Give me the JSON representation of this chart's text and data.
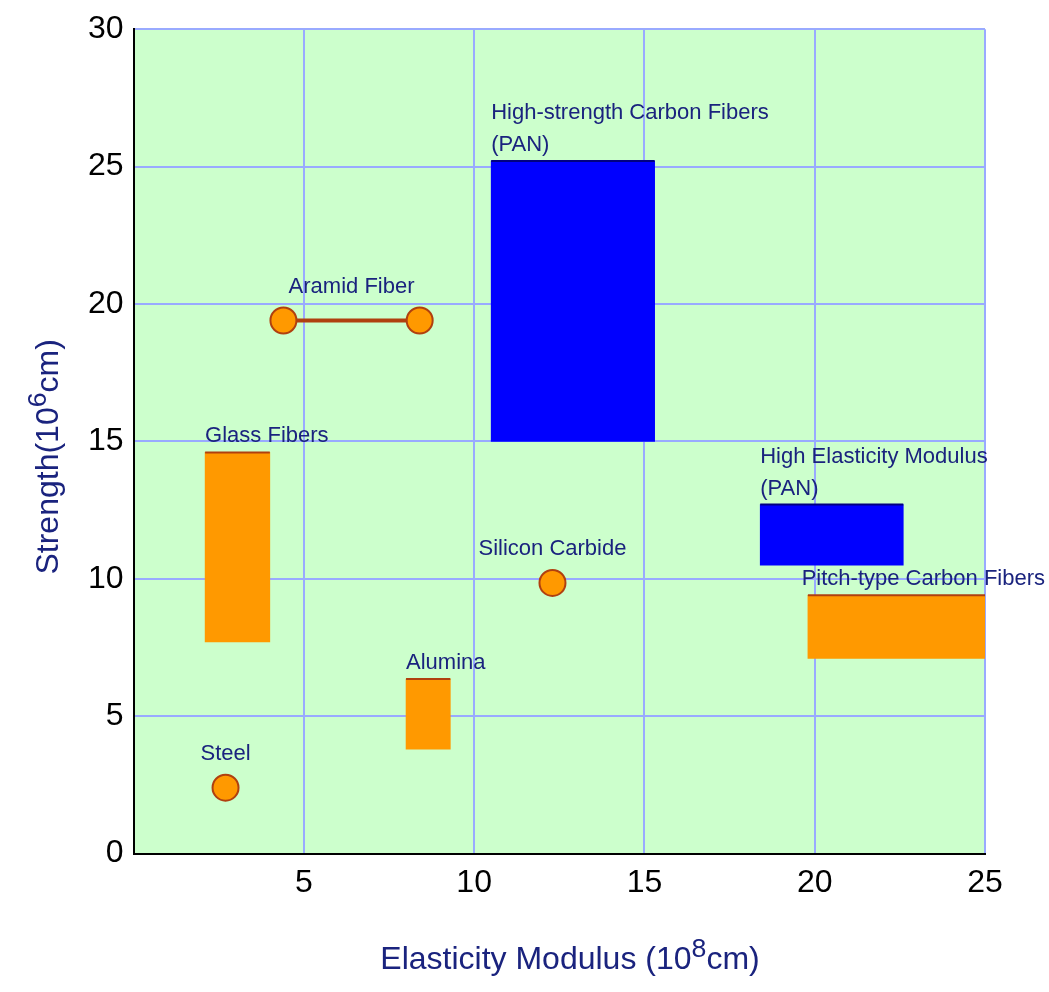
{
  "chart_data": {
    "type": "scatter",
    "xlabel": "Elasticity Modulus (10$^{8}$cm)",
    "ylabel": "Strength(10$^{6}$cm)",
    "xlim": [
      0,
      25
    ],
    "xticks": [
      5,
      10,
      15,
      20,
      25
    ],
    "ylim": [
      0,
      30
    ],
    "yticks": [
      0,
      5,
      10,
      15,
      20,
      25,
      30
    ],
    "grid": true,
    "marker": "circle",
    "series": [
      {
        "name": "High-strength Carbon Fibers (PAN)",
        "type": "bar",
        "color": "#0000ff",
        "x": [
          12.9
        ],
        "base": [
          15.0
        ],
        "values": [
          10.2
        ],
        "xerrors": [
          [
            10.5,
            15.3
          ]
        ]
      },
      {
        "name": "Aramid Fiber",
        "type": "line",
        "color": "#ff9900",
        "line_style": "solid",
        "x": [
          4.4,
          8.4
        ],
        "values": [
          19.4,
          19.4
        ]
      },
      {
        "name": "High Elasticity Modulus (PAN)",
        "type": "bar",
        "color": "#0000ff",
        "x": [
          20.5
        ],
        "base": [
          10.5
        ],
        "values": [
          2.2
        ],
        "xerrors": [
          [
            18.4,
            22.6
          ]
        ]
      },
      {
        "name": "Silicon Carbide",
        "color": "#ff9900",
        "x": [
          12.3
        ],
        "values": [
          9.85
        ]
      },
      {
        "name": "Glass Fibers",
        "type": "bar",
        "color": "#ff9900",
        "x": [
          3.05
        ],
        "base": [
          7.7
        ],
        "values": [
          6.9
        ],
        "xerrors": [
          [
            2.1,
            4.0
          ]
        ]
      },
      {
        "name": "Pitch-type Carbon Fibers",
        "type": "bar",
        "color": "#ff9900",
        "x": [
          22.4
        ],
        "base": [
          7.1
        ],
        "values": [
          2.3
        ],
        "xerrors": [
          [
            19.8,
            25.0
          ]
        ]
      },
      {
        "name": "Steel",
        "color": "#ff9900",
        "x": [
          2.7
        ],
        "values": [
          2.4
        ]
      },
      {
        "name": "Alumina",
        "type": "bar",
        "color": "#ff9900",
        "x": [
          8.65
        ],
        "base": [
          3.8
        ],
        "values": [
          2.55
        ],
        "xerrors": [
          [
            8.0,
            9.3
          ]
        ]
      }
    ]
  }
}
